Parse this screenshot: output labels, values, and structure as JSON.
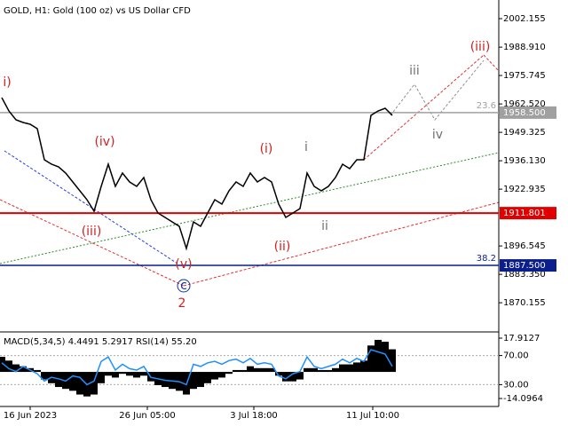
{
  "chart_data": [
    {
      "type": "line",
      "title": "GOLD, H1:  Gold (100 oz) vs US Dollar CFD",
      "xlim": [
        0,
        70
      ],
      "ylim": [
        1857.42,
        2009.58
      ],
      "yticks": [
        2002.155,
        {
          "value": 1988.91,
          "label": "1988.910"
        },
        1975.745,
        {
          "value": 1962.52,
          "label": "1962.520"
        },
        1949.325,
        {
          "value": 1936.13,
          "label": "1936.130"
        },
        1922.935,
        1896.545,
        {
          "value": 1883.35,
          "label": "1883.350"
        },
        1870.155
      ],
      "series": [
        {
          "color": "#000000",
          "values": [
            1965.46,
            1959.27,
            1955.15,
            1953.91,
            1953.09,
            1951.03,
            1936.59,
            1934.53,
            1933.29,
            1930.41,
            1926.28,
            1922.15,
            1918.04,
            1912.68,
            1924.22,
            1934.53,
            1924.22,
            1930.41,
            1926.28,
            1924.22,
            1928.35,
            1918.04,
            1911.85,
            1909.79,
            1907.73,
            1905.67,
            1895.36,
            1907.73,
            1905.67,
            1911.85,
            1918.04,
            1915.98,
            1922.15,
            1926.28,
            1924.22,
            1930.41,
            1926.28,
            1928.35,
            1926.28,
            1915.98,
            1909.79,
            1911.85,
            1913.91,
            1930.41,
            1924.22,
            1922.15,
            1924.22,
            1928.35,
            1934.53,
            1932.47,
            1936.59,
            1936.59,
            1957.21,
            1959.27,
            1960.51,
            1957.21
          ]
        }
      ],
      "levels": [
        {
          "value": 1958.5,
          "value_label": "1958.500",
          "fib": "23.6",
          "color": "#a0a0a0"
        },
        {
          "value": 1911.801,
          "value_label": "1911.801",
          "color": "#e00000"
        },
        {
          "value": 1887.5,
          "value_label": "1887.500",
          "fib": "38.2",
          "color": "#0a1e8c"
        }
      ],
      "annotations": [
        {
          "text": "i)",
          "color": "#d02020"
        },
        {
          "text": "(iv)",
          "color": "#d02020"
        },
        {
          "text": "(iii)",
          "color": "#d02020"
        },
        {
          "text": "(v)",
          "color": "#d02020"
        },
        {
          "text": "c",
          "color": "#1030a0"
        },
        {
          "text": "2",
          "color": "#d02020"
        },
        {
          "text": "(i)",
          "color": "#d02020"
        },
        {
          "text": "(ii)",
          "color": "#d02020"
        },
        {
          "text": "i",
          "color": "#707070"
        },
        {
          "text": "ii",
          "color": "#707070"
        },
        {
          "text": "iii",
          "color": "#707070"
        },
        {
          "text": "iv",
          "color": "#707070"
        },
        {
          "text": "(iii)",
          "color": "#d02020"
        }
      ]
    },
    {
      "type": "line",
      "title": "MACD(5,34,5) 4.4491 5.2917 RSI(14) 55.20",
      "xlim": [
        0,
        70
      ],
      "ylim": [
        0,
        100
      ],
      "y2lim": [
        -18.33,
        20.27
      ],
      "grid": true,
      "xticks": [
        {
          "value": 4,
          "label": "16 Jun 2023"
        },
        {
          "value": 20.5,
          "label": "26 Jun 05:00"
        },
        {
          "value": 35.5,
          "label": "3 Jul 18:00"
        },
        {
          "value": 52.25,
          "label": "11 Jul 10:00"
        }
      ],
      "yticks": [
        {
          "value": 70,
          "label": "70.00"
        },
        {
          "value": 30,
          "label": "30.00"
        }
      ],
      "y2ticks": [
        17.9127,
        -14.0964
      ],
      "series": [
        {
          "type": "bar",
          "axis": "y2",
          "color": "#000000",
          "values": [
            8,
            6,
            4,
            3,
            2,
            1,
            -4,
            -6,
            -8,
            -9,
            -10,
            -12,
            -13,
            -12,
            -6,
            -2,
            -3,
            -1,
            -2,
            -3,
            -2,
            -5,
            -7,
            -8,
            -9,
            -10,
            -12,
            -9,
            -8,
            -6,
            -4,
            -3,
            -1,
            1,
            1,
            3,
            2,
            2,
            2,
            -2,
            -5,
            -5,
            -4,
            2,
            2,
            1,
            1,
            2,
            4,
            4,
            5,
            6,
            14,
            17,
            16,
            12
          ]
        },
        {
          "color": "#1e90ff",
          "values": [
            60,
            52,
            48,
            55,
            50,
            45,
            35,
            40,
            38,
            35,
            42,
            40,
            30,
            35,
            62,
            68,
            50,
            58,
            52,
            50,
            55,
            40,
            38,
            36,
            35,
            34,
            30,
            58,
            55,
            60,
            62,
            58,
            63,
            65,
            60,
            66,
            58,
            60,
            58,
            42,
            38,
            45,
            48,
            68,
            55,
            52,
            55,
            58,
            65,
            60,
            66,
            62,
            78,
            75,
            72,
            55
          ]
        }
      ]
    }
  ]
}
